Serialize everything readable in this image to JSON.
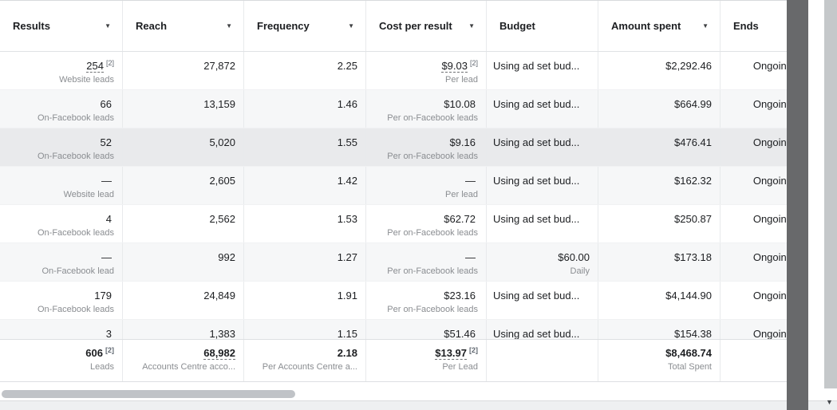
{
  "icons": {
    "caret_down": "▼"
  },
  "header": {
    "columns": [
      {
        "label": "Results",
        "has_caret": true
      },
      {
        "label": "Reach",
        "has_caret": true
      },
      {
        "label": "Frequency",
        "has_caret": true
      },
      {
        "label": "Cost per result",
        "has_caret": true
      },
      {
        "label": "Budget",
        "has_caret": false
      },
      {
        "label": "Amount spent",
        "has_caret": true
      },
      {
        "label": "Ends",
        "has_caret": false
      }
    ]
  },
  "rows": [
    {
      "results": {
        "value": "254",
        "badge": "[2]",
        "sub": "Website leads",
        "underline": true
      },
      "reach": "27,872",
      "frequency": "2.25",
      "cost": {
        "value": "$9.03",
        "badge": "[2]",
        "sub": "Per lead",
        "underline": true
      },
      "budget": {
        "value": "Using ad set bud..."
      },
      "spent": "$2,292.46",
      "ends": "Ongoing"
    },
    {
      "results": {
        "value": "66",
        "sub": "On-Facebook leads"
      },
      "reach": "13,159",
      "frequency": "1.46",
      "cost": {
        "value": "$10.08",
        "sub": "Per on-Facebook leads"
      },
      "budget": {
        "value": "Using ad set bud..."
      },
      "spent": "$664.99",
      "ends": "Ongoing"
    },
    {
      "highlighted": true,
      "results": {
        "value": "52",
        "sub": "On-Facebook leads"
      },
      "reach": "5,020",
      "frequency": "1.55",
      "cost": {
        "value": "$9.16",
        "sub": "Per on-Facebook leads"
      },
      "budget": {
        "value": "Using ad set bud..."
      },
      "spent": "$476.41",
      "ends": "Ongoing"
    },
    {
      "results": {
        "value": "—",
        "sub": "Website lead"
      },
      "reach": "2,605",
      "frequency": "1.42",
      "cost": {
        "value": "—",
        "sub": "Per lead"
      },
      "budget": {
        "value": "Using ad set bud..."
      },
      "spent": "$162.32",
      "ends": "Ongoing"
    },
    {
      "results": {
        "value": "4",
        "sub": "On-Facebook leads"
      },
      "reach": "2,562",
      "frequency": "1.53",
      "cost": {
        "value": "$62.72",
        "sub": "Per on-Facebook leads"
      },
      "budget": {
        "value": "Using ad set bud..."
      },
      "spent": "$250.87",
      "ends": "Ongoing"
    },
    {
      "results": {
        "value": "—",
        "sub": "On-Facebook lead"
      },
      "reach": "992",
      "frequency": "1.27",
      "cost": {
        "value": "—",
        "sub": "Per on-Facebook leads"
      },
      "budget": {
        "value": "$60.00",
        "sub": "Daily",
        "money": true
      },
      "spent": "$173.18",
      "ends": "Ongoing"
    },
    {
      "results": {
        "value": "179",
        "sub": "On-Facebook leads"
      },
      "reach": "24,849",
      "frequency": "1.91",
      "cost": {
        "value": "$23.16",
        "sub": "Per on-Facebook leads"
      },
      "budget": {
        "value": "Using ad set bud..."
      },
      "spent": "$4,144.90",
      "ends": "Ongoing"
    },
    {
      "results": {
        "value": "3"
      },
      "reach": "1,383",
      "frequency": "1.15",
      "cost": {
        "value": "$51.46"
      },
      "budget": {
        "value": "Using ad set bud..."
      },
      "spent": "$154.38",
      "ends": "Ongoing"
    }
  ],
  "footer": {
    "results": {
      "value": "606",
      "badge": "[2]",
      "sub": "Leads"
    },
    "reach": {
      "value": "68,982",
      "sub": "Accounts Centre acco..."
    },
    "frequency": {
      "value": "2.18",
      "sub": "Per Accounts Centre a..."
    },
    "cost": {
      "value": "$13.97",
      "badge": "[2]",
      "sub": "Per Lead"
    },
    "spent": {
      "value": "$8,468.74",
      "sub": "Total Spent"
    }
  }
}
